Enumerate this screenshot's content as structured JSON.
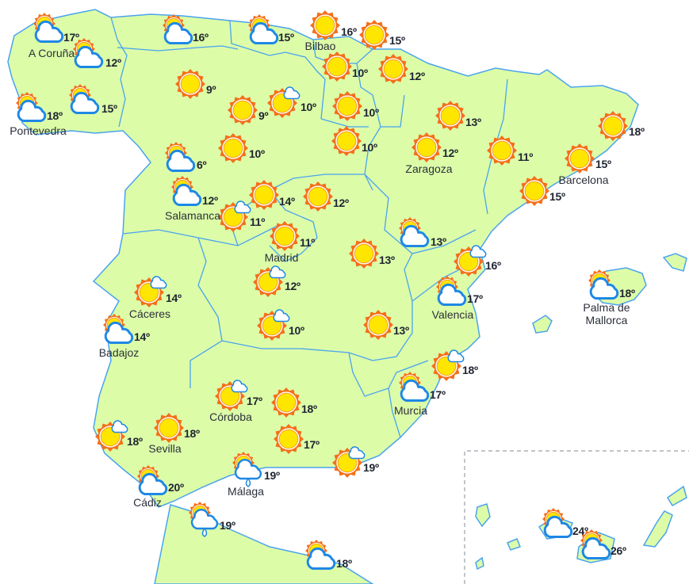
{
  "colors": {
    "land": "#dcfca8",
    "border": "#4aa3ef",
    "sun": "#ffe600",
    "sun_rays": "#f56f1a",
    "cloud_stroke": "#1e88e5",
    "text": "#1f2430"
  },
  "forecasts": [
    {
      "icon": "sun-cloud",
      "temp": "17º",
      "label": "A Coruña"
    },
    {
      "icon": "sun-cloud",
      "temp": "12º"
    },
    {
      "icon": "sun-cloud",
      "temp": "18º",
      "label": "Pontevedra"
    },
    {
      "icon": "sun-cloud",
      "temp": "15º"
    },
    {
      "icon": "sun-cloud",
      "temp": "16º"
    },
    {
      "icon": "sun-cloud",
      "temp": "15º"
    },
    {
      "icon": "sun",
      "temp": "16º",
      "label": "Bilbao"
    },
    {
      "icon": "sun",
      "temp": "15º"
    },
    {
      "icon": "sun",
      "temp": "10º"
    },
    {
      "icon": "sun",
      "temp": "12º"
    },
    {
      "icon": "sun",
      "temp": "9º"
    },
    {
      "icon": "sun",
      "temp": "9º"
    },
    {
      "icon": "sun-small-cloud",
      "temp": "10º"
    },
    {
      "icon": "sun",
      "temp": "10º"
    },
    {
      "icon": "sun",
      "temp": "10º"
    },
    {
      "icon": "sun-cloud",
      "temp": "6º"
    },
    {
      "icon": "sun",
      "temp": "10º"
    },
    {
      "icon": "sun",
      "temp": "13º"
    },
    {
      "icon": "sun",
      "temp": "12º",
      "label": "Zaragoza"
    },
    {
      "icon": "sun",
      "temp": "11º"
    },
    {
      "icon": "sun",
      "temp": "18º"
    },
    {
      "icon": "sun",
      "temp": "15º",
      "label": "Barcelona"
    },
    {
      "icon": "sun",
      "temp": "15º"
    },
    {
      "icon": "sun-cloud",
      "temp": "12º",
      "label": "Salamanca"
    },
    {
      "icon": "sun",
      "temp": "14º"
    },
    {
      "icon": "sun-small-cloud",
      "temp": "11º"
    },
    {
      "icon": "sun",
      "temp": "12º"
    },
    {
      "icon": "sun",
      "temp": "11º",
      "label": "Madrid"
    },
    {
      "icon": "sun",
      "temp": "13º"
    },
    {
      "icon": "sun-cloud",
      "temp": "13º"
    },
    {
      "icon": "sun-small-cloud",
      "temp": "16º"
    },
    {
      "icon": "sun-small-cloud",
      "temp": "14º",
      "label": "Cáceres"
    },
    {
      "icon": "sun-small-cloud",
      "temp": "12º"
    },
    {
      "icon": "sun-cloud",
      "temp": "17º",
      "label": "Valencia"
    },
    {
      "icon": "sun-cloud",
      "temp": "14º",
      "label": "Badajoz"
    },
    {
      "icon": "sun-small-cloud",
      "temp": "10º"
    },
    {
      "icon": "sun",
      "temp": "13º"
    },
    {
      "icon": "sun-small-cloud",
      "temp": "18º"
    },
    {
      "icon": "sun-small-cloud",
      "temp": "17º",
      "label": "Córdoba"
    },
    {
      "icon": "sun",
      "temp": "18º"
    },
    {
      "icon": "sun-cloud",
      "temp": "17º",
      "label": "Murcia"
    },
    {
      "icon": "sun-small-cloud",
      "temp": "18º"
    },
    {
      "icon": "sun",
      "temp": "18º",
      "label": "Sevilla"
    },
    {
      "icon": "sun",
      "temp": "17º"
    },
    {
      "icon": "sun-small-cloud",
      "temp": "19º"
    },
    {
      "icon": "sun-cloud-rain",
      "temp": "19º",
      "label": "Málaga"
    },
    {
      "icon": "sun-cloud",
      "temp": "20º",
      "label": "Cádiz"
    },
    {
      "icon": "sun-cloud",
      "temp": "18º",
      "label": "Palma de\nMallorca"
    },
    {
      "icon": "sun-cloud-rain",
      "temp": "19º"
    },
    {
      "icon": "sun-cloud",
      "temp": "18º"
    },
    {
      "icon": "sun-cloud",
      "temp": "24º"
    },
    {
      "icon": "sun-cloud",
      "temp": "26º"
    }
  ]
}
